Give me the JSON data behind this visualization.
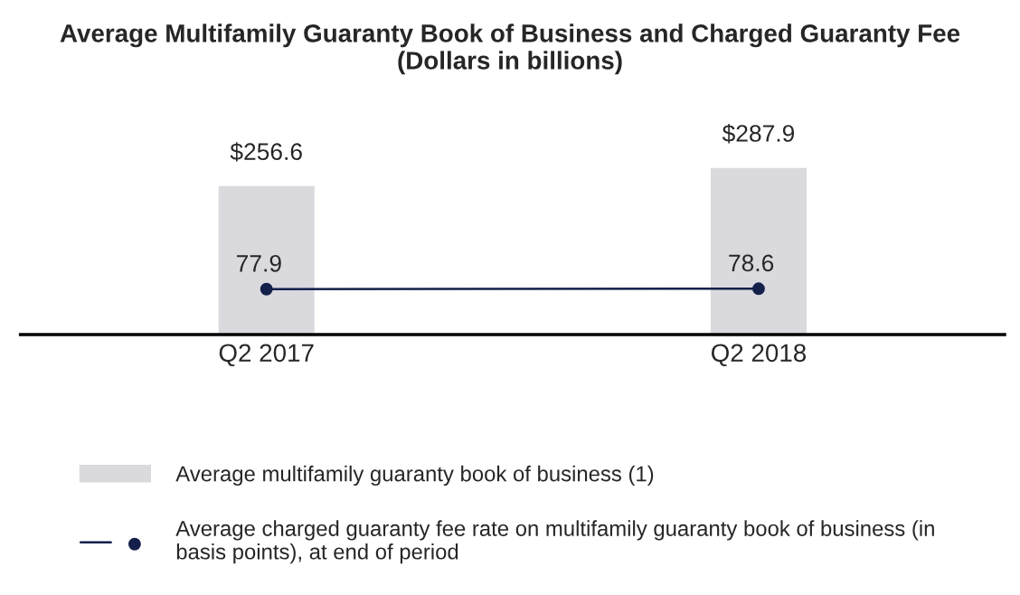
{
  "chart_data": {
    "type": "bar",
    "title": "Average Multifamily Guaranty Book of Business and Charged Guaranty Fee\n(Dollars in billions)",
    "categories": [
      "Q2 2017",
      "Q2 2018"
    ],
    "series": [
      {
        "name": "Average multifamily guaranty book of business (1)",
        "color": "#d9d9de",
        "values": [
          256.6,
          287.9
        ],
        "value_labels": [
          "$256.6",
          "$287.9"
        ]
      },
      {
        "name": "Average charged guaranty fee rate on multifamily guaranty book of business (in\nbasis points), at end of period",
        "type": "line",
        "color": "#14204a",
        "marker": "circle",
        "values": [
          77.9,
          78.6
        ],
        "value_labels": [
          "77.9",
          "78.6"
        ]
      }
    ],
    "tick_labels": "x",
    "grid": false,
    "legend": "bottom"
  }
}
